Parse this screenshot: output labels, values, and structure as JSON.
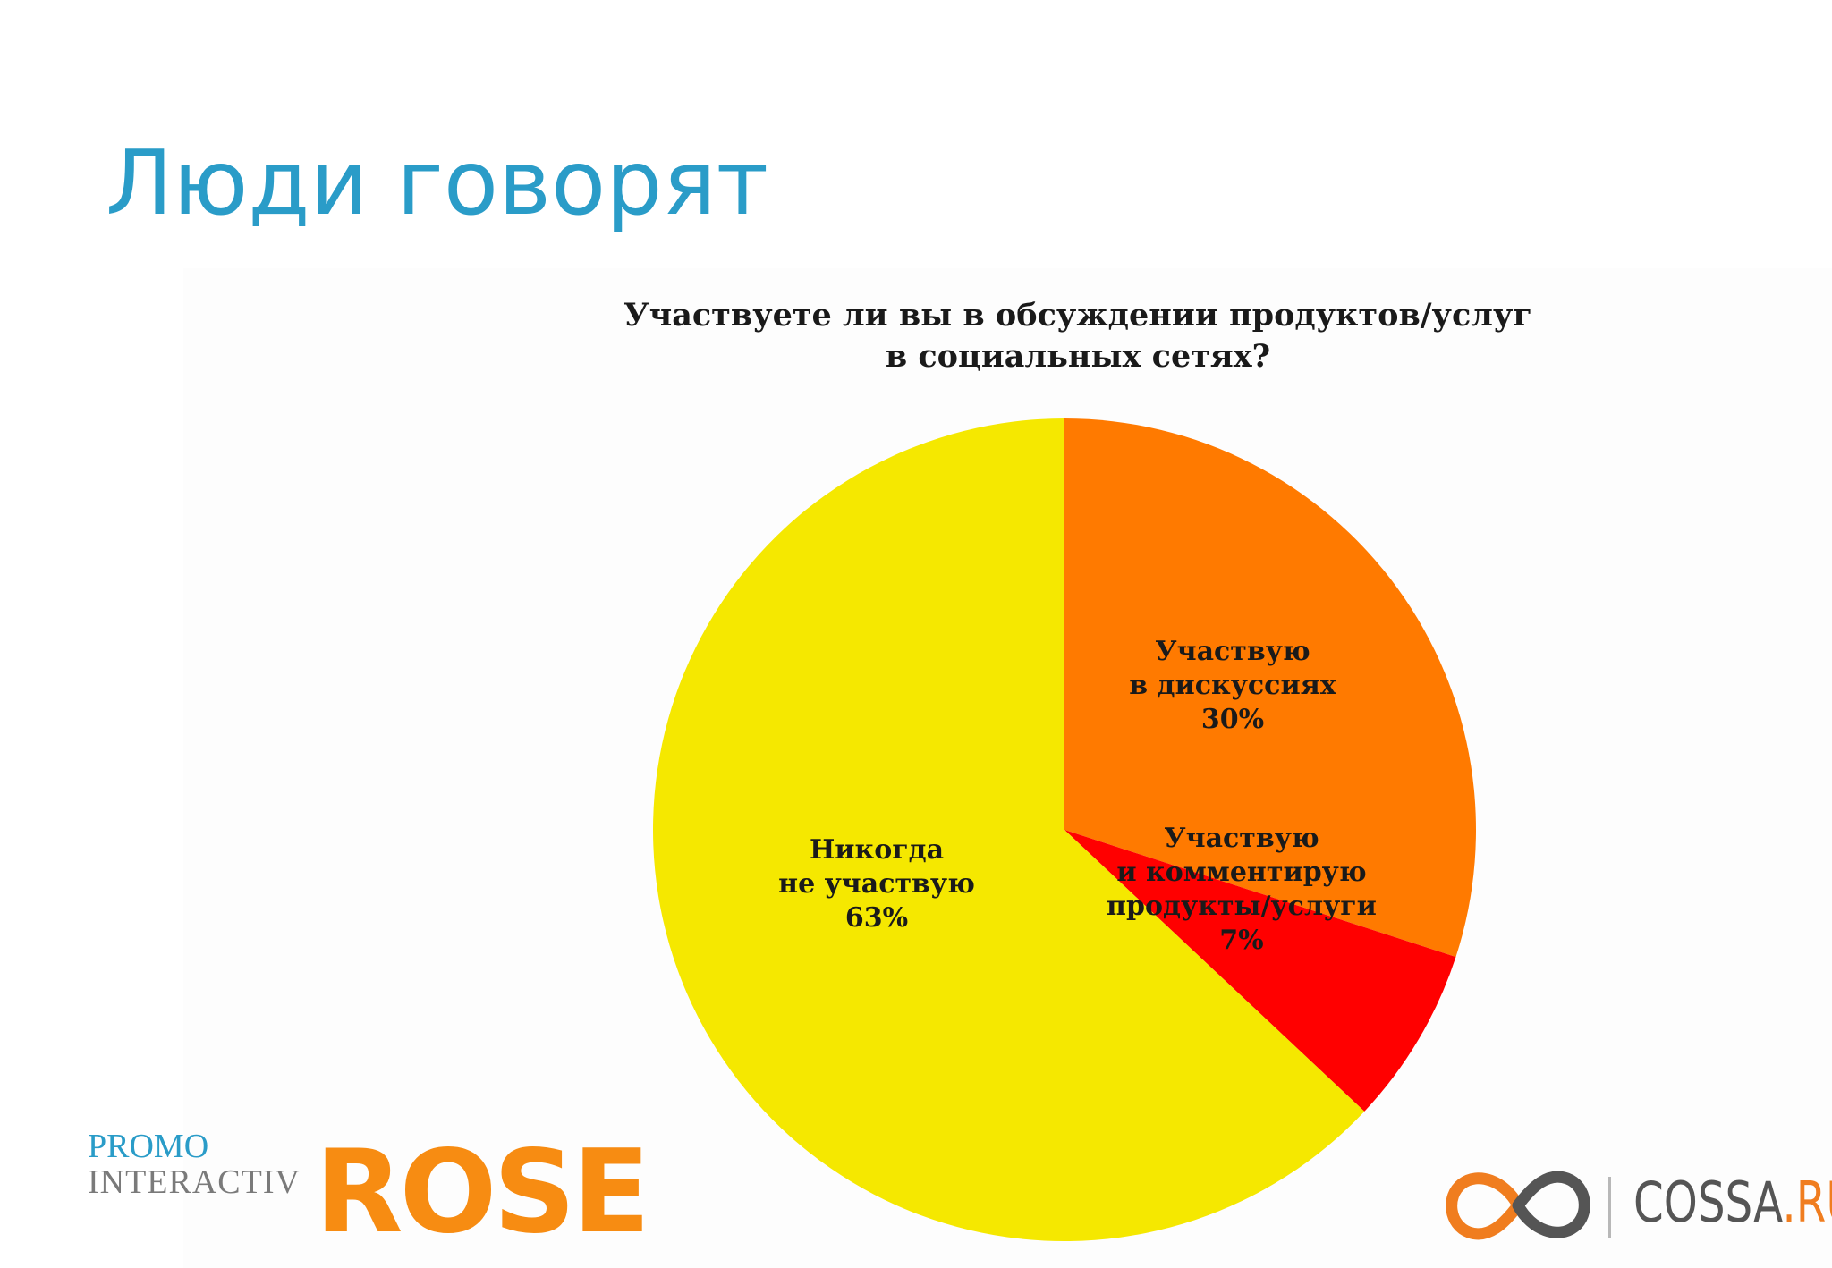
{
  "slide": {
    "title": "Люди говорят"
  },
  "chart_data": {
    "type": "pie",
    "title_lines": [
      "Участвуете ли вы в обсуждении продуктов/услуг",
      "в социальных сетях?"
    ],
    "slices": [
      {
        "label_lines": [
          "Участвую",
          "в дискуссиях",
          "30%"
        ],
        "value": 30,
        "color": "#ff7a00"
      },
      {
        "label_lines": [
          "Участвую",
          "и комментирую",
          "продукты/услуги",
          "7%"
        ],
        "value": 7,
        "color": "#ff0000"
      },
      {
        "label_lines": [
          "Никогда",
          "не участвую",
          "63%"
        ],
        "value": 63,
        "color": "#f5e800"
      }
    ],
    "start": "12 o'clock",
    "direction": "clockwise",
    "legend": "none"
  },
  "logos": {
    "promo": "PROMO",
    "interactive": "INTERACTIV",
    "rose": "ROSE",
    "cossa_main": "COSSA",
    "cossa_suffix": ".RU"
  },
  "colors": {
    "title": "#2a9cc8",
    "rose": "#f78c12",
    "cossa_accent": "#f07d1f"
  }
}
